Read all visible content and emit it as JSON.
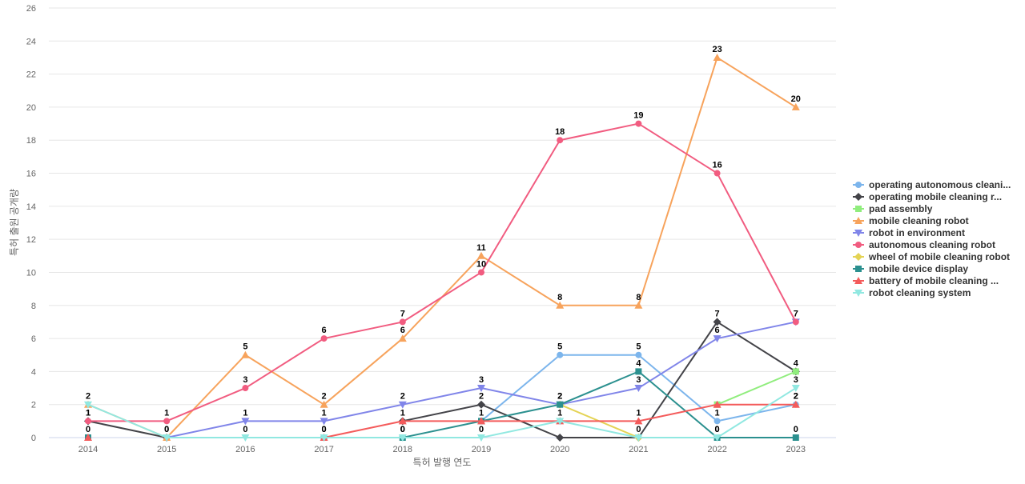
{
  "chart_data": {
    "type": "line",
    "title": "",
    "xlabel": "특허 발행 연도",
    "ylabel": "특허 출원 공개량",
    "ylim": [
      0,
      26
    ],
    "yticks": [
      0,
      2,
      4,
      6,
      8,
      10,
      12,
      14,
      16,
      18,
      20,
      22,
      24,
      26
    ],
    "grid": true,
    "legend_position": "right",
    "categories": [
      "2014",
      "2015",
      "2016",
      "2017",
      "2018",
      "2019",
      "2020",
      "2021",
      "2022",
      "2023"
    ],
    "series": [
      {
        "name": "operating autonomous cleani...",
        "color": "#7cb5ec",
        "marker": "circle",
        "values": [
          null,
          null,
          null,
          null,
          null,
          1,
          5,
          5,
          1,
          2
        ],
        "labels": [
          false,
          false,
          false,
          false,
          false,
          false,
          true,
          true,
          true,
          true
        ]
      },
      {
        "name": "operating mobile cleaning r...",
        "color": "#434348",
        "marker": "diamond",
        "values": [
          1,
          0,
          null,
          null,
          1,
          2,
          0,
          0,
          7,
          4
        ],
        "labels": [
          true,
          false,
          false,
          false,
          false,
          true,
          false,
          false,
          true,
          true
        ]
      },
      {
        "name": "pad assembly",
        "color": "#90ed7d",
        "marker": "square",
        "values": [
          null,
          null,
          null,
          null,
          null,
          null,
          null,
          null,
          2,
          4
        ],
        "labels": [
          false,
          false,
          false,
          false,
          false,
          false,
          false,
          false,
          false,
          false
        ]
      },
      {
        "name": "mobile cleaning robot",
        "color": "#f7a35c",
        "marker": "triangle",
        "values": [
          2,
          0,
          5,
          2,
          6,
          11,
          8,
          8,
          23,
          20
        ],
        "labels": [
          true,
          true,
          true,
          true,
          true,
          true,
          true,
          true,
          true,
          true
        ]
      },
      {
        "name": "robot in environment",
        "color": "#8085e9",
        "marker": "triangle-down",
        "values": [
          null,
          0,
          1,
          1,
          2,
          3,
          2,
          3,
          6,
          7
        ],
        "labels": [
          false,
          false,
          true,
          true,
          true,
          true,
          true,
          true,
          true,
          false
        ]
      },
      {
        "name": "autonomous cleaning robot",
        "color": "#f15c80",
        "marker": "circle",
        "values": [
          1,
          1,
          3,
          6,
          7,
          10,
          18,
          19,
          16,
          7
        ],
        "labels": [
          true,
          true,
          true,
          true,
          true,
          true,
          true,
          true,
          true,
          true
        ]
      },
      {
        "name": "wheel of mobile cleaning robot",
        "color": "#e4d354",
        "marker": "diamond",
        "values": [
          null,
          null,
          null,
          null,
          null,
          null,
          2,
          0,
          null,
          null
        ],
        "labels": [
          false,
          false,
          false,
          false,
          false,
          false,
          false,
          false,
          false,
          false
        ]
      },
      {
        "name": "mobile device display",
        "color": "#2b908f",
        "marker": "square",
        "values": [
          0,
          null,
          null,
          0,
          0,
          1,
          2,
          4,
          0,
          0
        ],
        "labels": [
          false,
          false,
          false,
          true,
          true,
          true,
          true,
          true,
          true,
          true
        ]
      },
      {
        "name": "battery of mobile cleaning ...",
        "color": "#f45b5b",
        "marker": "triangle",
        "values": [
          0,
          null,
          null,
          0,
          1,
          1,
          1,
          1,
          2,
          2
        ],
        "labels": [
          true,
          false,
          false,
          false,
          true,
          false,
          false,
          true,
          false,
          true
        ]
      },
      {
        "name": "robot cleaning system",
        "color": "#91e8e1",
        "marker": "triangle-down",
        "values": [
          2,
          0,
          0,
          0,
          0,
          0,
          1,
          0,
          0,
          3
        ],
        "labels": [
          false,
          true,
          true,
          true,
          true,
          true,
          true,
          true,
          true,
          true
        ]
      }
    ]
  }
}
